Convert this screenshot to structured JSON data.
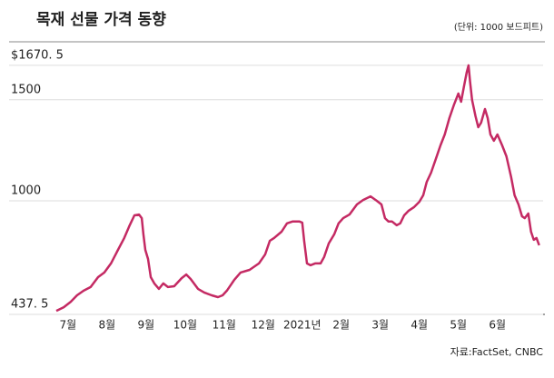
{
  "chart_data": {
    "type": "line",
    "title": "목재 선물 가격 동향",
    "unit": "(단위: 1000 보드피트)",
    "source": "자료:FactSet, CNBC",
    "xlim": [
      -0.3,
      12.17
    ],
    "xticks": [
      {
        "value": 0,
        "label": "7월"
      },
      {
        "value": 1,
        "label": "8월"
      },
      {
        "value": 2,
        "label": "9월"
      },
      {
        "value": 3,
        "label": "10월"
      },
      {
        "value": 4,
        "label": "11월"
      },
      {
        "value": 5,
        "label": "12월"
      },
      {
        "value": 6,
        "label": "2021년"
      },
      {
        "value": 7,
        "label": "2월"
      },
      {
        "value": 8,
        "label": "3월"
      },
      {
        "value": 9,
        "label": "4월"
      },
      {
        "value": 10,
        "label": "5월"
      },
      {
        "value": 11,
        "label": "6월"
      }
    ],
    "ylim": [
      437.5,
      1715
    ],
    "yticks": [
      {
        "value": 437.5,
        "label": "437. 5"
      },
      1000,
      1500,
      {
        "value": 1670.5,
        "label": "$1670. 5"
      }
    ],
    "grid": true,
    "color": "#c42a63",
    "x": [
      -0.3,
      -0.11,
      0.07,
      0.23,
      0.4,
      0.58,
      0.77,
      0.93,
      1.1,
      1.28,
      1.44,
      1.58,
      1.7,
      1.82,
      1.89,
      1.93,
      1.98,
      2.05,
      2.12,
      2.21,
      2.33,
      2.44,
      2.56,
      2.72,
      2.91,
      3.03,
      3.14,
      3.33,
      3.49,
      3.68,
      3.84,
      3.96,
      4.07,
      4.26,
      4.42,
      4.65,
      4.89,
      5.05,
      5.17,
      5.28,
      5.47,
      5.61,
      5.75,
      5.93,
      6.0,
      6.05,
      6.12,
      6.21,
      6.33,
      6.47,
      6.56,
      6.68,
      6.82,
      6.93,
      7.05,
      7.21,
      7.4,
      7.56,
      7.75,
      7.91,
      8.03,
      8.12,
      8.21,
      8.3,
      8.42,
      8.51,
      8.61,
      8.72,
      8.86,
      9.0,
      9.1,
      9.19,
      9.3,
      9.42,
      9.54,
      9.65,
      9.77,
      9.89,
      10.0,
      10.07,
      10.14,
      10.21,
      10.26,
      10.3,
      10.35,
      10.44,
      10.51,
      10.58,
      10.68,
      10.75,
      10.82,
      10.91,
      11.0,
      11.12,
      11.23,
      11.35,
      11.44,
      11.54,
      11.63,
      11.7,
      11.79,
      11.86,
      11.93,
      12.0,
      12.07
    ],
    "values": [
      455,
      473,
      500,
      532,
      555,
      573,
      622,
      645,
      690,
      757,
      816,
      879,
      928,
      932,
      914,
      834,
      757,
      712,
      622,
      591,
      564,
      591,
      573,
      577,
      617,
      635,
      613,
      564,
      546,
      532,
      523,
      532,
      555,
      609,
      645,
      658,
      690,
      735,
      802,
      816,
      847,
      888,
      897,
      897,
      892,
      802,
      690,
      681,
      690,
      690,
      722,
      789,
      834,
      888,
      914,
      932,
      982,
      1004,
      1022,
      1000,
      982,
      914,
      897,
      897,
      879,
      888,
      928,
      950,
      968,
      995,
      1027,
      1094,
      1139,
      1206,
      1274,
      1328,
      1409,
      1477,
      1531,
      1490,
      1562,
      1634,
      1670.5,
      1589,
      1499,
      1418,
      1364,
      1386,
      1454,
      1409,
      1328,
      1297,
      1328,
      1274,
      1220,
      1117,
      1027,
      982,
      923,
      914,
      937,
      847,
      807,
      816,
      780
    ]
  }
}
